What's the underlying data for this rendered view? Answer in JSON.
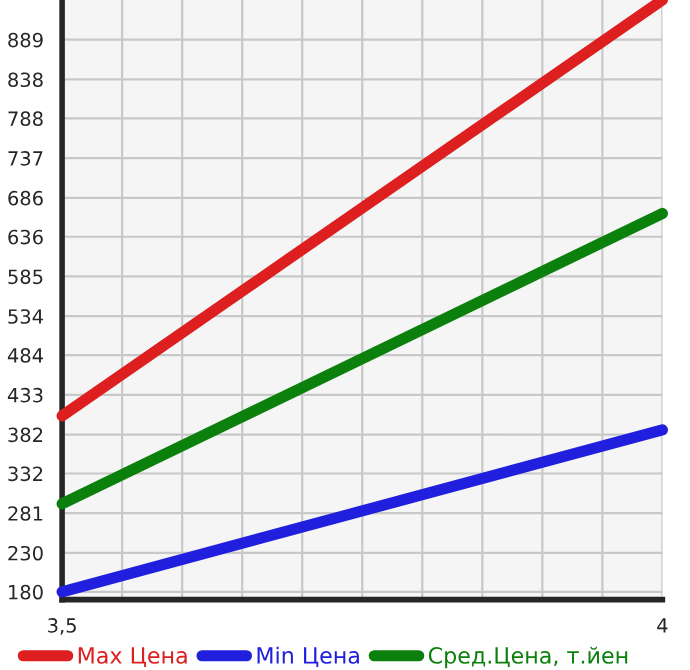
{
  "chart_data": {
    "type": "line",
    "x": [
      3.5,
      4
    ],
    "series": [
      {
        "name": "Max Цена",
        "color": "#dd1f1f",
        "values": [
          406,
          940
        ]
      },
      {
        "name": "Min Цена",
        "color": "#1f1fdd",
        "values": [
          180,
          388
        ]
      },
      {
        "name": "Сред.Цена, т.йен",
        "color": "#0c800c",
        "values": [
          293,
          666
        ]
      }
    ],
    "xlim": [
      3.5,
      4
    ],
    "xticks": [
      {
        "value": 3.5,
        "label": "3,5"
      },
      {
        "value": 3.55,
        "label": null
      },
      {
        "value": 3.6,
        "label": null
      },
      {
        "value": 3.65,
        "label": null
      },
      {
        "value": 3.7,
        "label": null
      },
      {
        "value": 3.75,
        "label": null
      },
      {
        "value": 3.8,
        "label": null
      },
      {
        "value": 3.85,
        "label": null
      },
      {
        "value": 3.9,
        "label": null
      },
      {
        "value": 3.95,
        "label": null
      },
      {
        "value": 4,
        "label": "4"
      }
    ],
    "ylim": [
      170,
      940
    ],
    "yticks": [
      180,
      230,
      281,
      332,
      382,
      433,
      484,
      534,
      585,
      636,
      686,
      737,
      788,
      838,
      889
    ],
    "grid": true,
    "legend": "bottom",
    "marker": "none",
    "line_style": "solid"
  }
}
